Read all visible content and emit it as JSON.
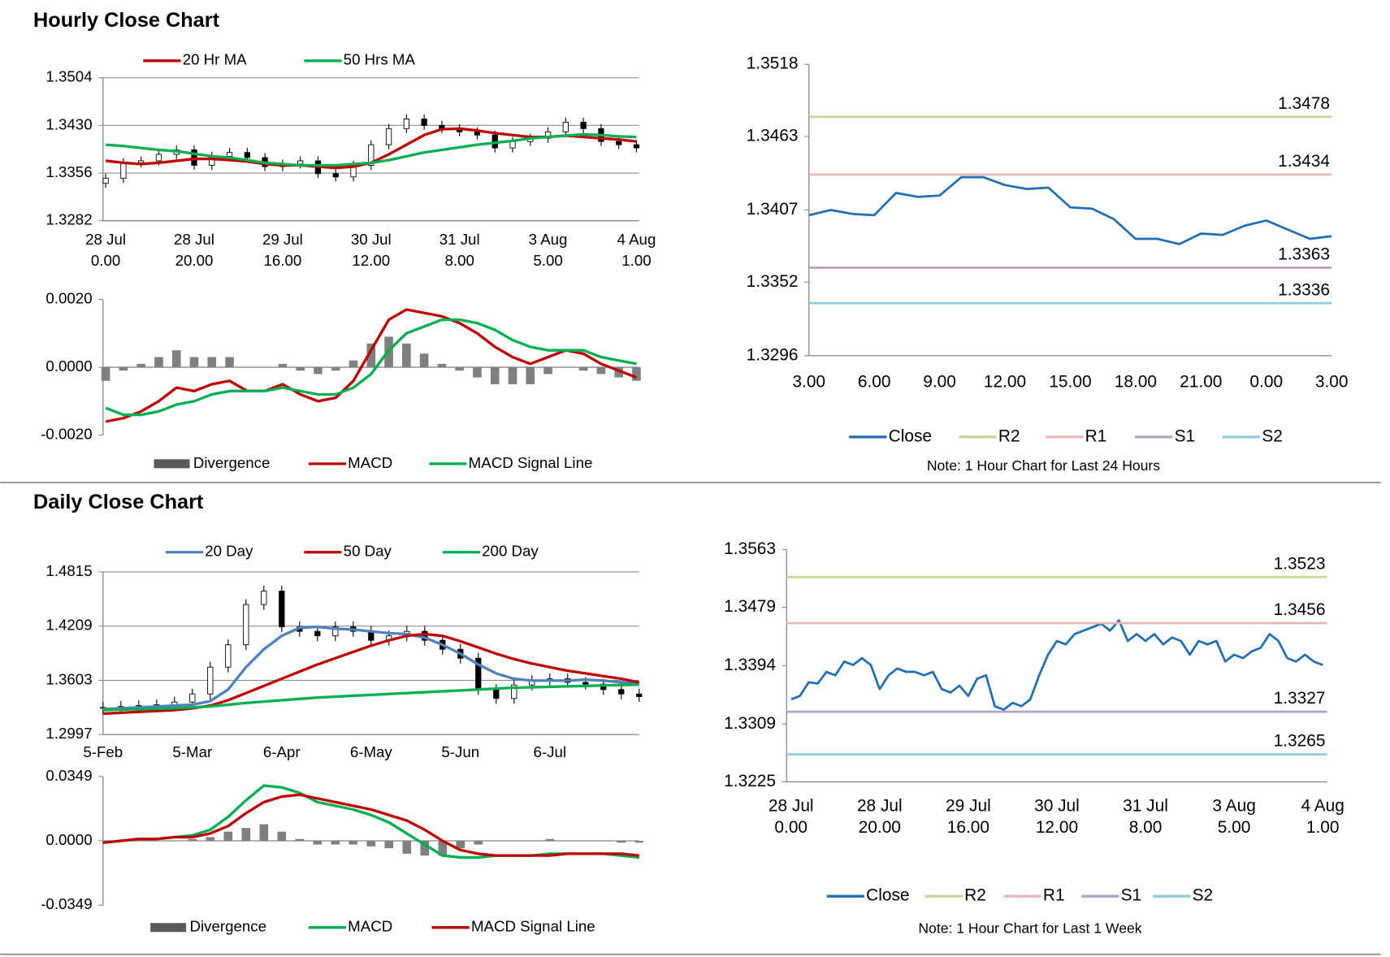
{
  "headings": [
    "Hourly Close Chart",
    "Daily Close Chart"
  ],
  "chart_data": [
    {
      "type": "candlestick",
      "categories": [
        [
          "28 Jul",
          "0.00"
        ],
        null,
        null,
        null,
        null,
        [
          "28 Jul",
          "20.00"
        ],
        null,
        null,
        null,
        null,
        [
          "29 Jul",
          "16.00"
        ],
        null,
        null,
        null,
        null,
        [
          "30 Jul",
          "12.00"
        ],
        null,
        null,
        null,
        null,
        [
          "31 Jul",
          "8.00"
        ],
        null,
        null,
        null,
        null,
        [
          "3 Aug",
          "5.00"
        ],
        null,
        null,
        null,
        null,
        [
          "4 Aug",
          "1.00"
        ]
      ],
      "open": [
        1.334,
        1.3348,
        1.3372,
        1.3375,
        1.3385,
        1.3392,
        1.3368,
        1.3382,
        1.3388,
        1.338,
        1.3366,
        1.337,
        1.3375,
        1.3355,
        1.335,
        1.3368,
        1.34,
        1.3425,
        1.344,
        1.343,
        1.3425,
        1.342,
        1.3415,
        1.3395,
        1.3405,
        1.341,
        1.342,
        1.3435,
        1.3425,
        1.3405,
        1.34
      ],
      "high": [
        1.3355,
        1.3379,
        1.3382,
        1.3392,
        1.3399,
        1.3399,
        1.3389,
        1.3395,
        1.3395,
        1.3387,
        1.3377,
        1.3382,
        1.3382,
        1.3362,
        1.3375,
        1.3407,
        1.3432,
        1.3447,
        1.3447,
        1.3437,
        1.3432,
        1.3427,
        1.3422,
        1.3412,
        1.3417,
        1.3427,
        1.3442,
        1.3442,
        1.3432,
        1.3412,
        1.3407
      ],
      "low": [
        1.3333,
        1.3341,
        1.3365,
        1.3368,
        1.3378,
        1.3361,
        1.3361,
        1.3375,
        1.3373,
        1.3359,
        1.3359,
        1.3363,
        1.3348,
        1.3343,
        1.3343,
        1.3361,
        1.3393,
        1.3418,
        1.3423,
        1.3418,
        1.3413,
        1.3408,
        1.3388,
        1.3388,
        1.3398,
        1.3403,
        1.3413,
        1.3418,
        1.3398,
        1.3393,
        1.3388
      ],
      "close": [
        1.3348,
        1.3372,
        1.3375,
        1.3385,
        1.3392,
        1.3368,
        1.3382,
        1.3388,
        1.338,
        1.3366,
        1.337,
        1.3375,
        1.3355,
        1.335,
        1.3368,
        1.34,
        1.3425,
        1.344,
        1.343,
        1.3425,
        1.342,
        1.3415,
        1.3395,
        1.3405,
        1.341,
        1.342,
        1.3435,
        1.3425,
        1.3405,
        1.34,
        1.3395
      ],
      "series": [
        {
          "name": "20 Hr MA",
          "color": "#c00000",
          "values": [
            1.3375,
            1.3372,
            1.337,
            1.3372,
            1.3375,
            1.3378,
            1.3378,
            1.3376,
            1.3374,
            1.337,
            1.3368,
            1.3368,
            1.3366,
            1.3364,
            1.3366,
            1.3372,
            1.3385,
            1.34,
            1.3415,
            1.3424,
            1.3425,
            1.3422,
            1.3418,
            1.3415,
            1.3412,
            1.3412,
            1.3414,
            1.3412,
            1.341,
            1.3408,
            1.3405
          ]
        },
        {
          "name": "50 Hrs MA",
          "color": "#00b050",
          "values": [
            1.34,
            1.3398,
            1.3395,
            1.3392,
            1.339,
            1.3386,
            1.3382,
            1.338,
            1.3376,
            1.3372,
            1.337,
            1.3368,
            1.3368,
            1.3368,
            1.337,
            1.3372,
            1.3376,
            1.3382,
            1.3388,
            1.3392,
            1.3396,
            1.34,
            1.3403,
            1.3406,
            1.341,
            1.3412,
            1.3414,
            1.3416,
            1.3415,
            1.3413,
            1.3412
          ]
        }
      ],
      "ylim": [
        1.3282,
        1.3504
      ],
      "yticks": [
        1.3282,
        1.3356,
        {
          "value": 1.343,
          "label": "1.3430"
        },
        1.3504
      ],
      "grid": true
    },
    {
      "type": "macd",
      "series": [
        {
          "name": "Divergence",
          "type": "bar",
          "color": "#7f7f7f",
          "values": [
            -0.0004,
            -0.0001,
            0.0001,
            0.0003,
            0.0005,
            0.0003,
            0.0003,
            0.0003,
            0.0,
            0.0,
            0.0001,
            -0.0001,
            -0.0002,
            -0.0001,
            0.0002,
            0.0007,
            0.0009,
            0.0007,
            0.0004,
            0.0001,
            -0.0001,
            -0.0003,
            -0.0005,
            -0.0005,
            -0.0005,
            -0.0002,
            0.0,
            -0.0001,
            -0.0002,
            -0.0003,
            -0.0004
          ]
        },
        {
          "name": "MACD",
          "color": "#c00000",
          "values": [
            -0.0016,
            -0.0015,
            -0.0013,
            -0.001,
            -0.0006,
            -0.0007,
            -0.0005,
            -0.0004,
            -0.0007,
            -0.0007,
            -0.0005,
            -0.0008,
            -0.001,
            -0.0009,
            -0.0004,
            0.0005,
            0.0014,
            0.0017,
            0.0016,
            0.0015,
            0.0013,
            0.001,
            0.0006,
            0.0003,
            0.0001,
            0.0003,
            0.0005,
            0.0004,
            0.0001,
            -0.0001,
            -0.0003
          ]
        },
        {
          "name": "MACD Signal Line",
          "color": "#00b050",
          "values": [
            -0.0012,
            -0.0014,
            -0.0014,
            -0.0013,
            -0.0011,
            -0.001,
            -0.0008,
            -0.0007,
            -0.0007,
            -0.0007,
            -0.0006,
            -0.0007,
            -0.0008,
            -0.0008,
            -0.0006,
            -0.0002,
            0.0005,
            0.001,
            0.0012,
            0.0014,
            0.0014,
            0.0013,
            0.0011,
            0.0008,
            0.0006,
            0.0005,
            0.0005,
            0.0005,
            0.0003,
            0.0002,
            0.0001
          ]
        }
      ],
      "ylim": [
        -0.002,
        0.002
      ],
      "yticks": [
        {
          "value": -0.002,
          "label": "-0.0020"
        },
        {
          "value": 0,
          "label": "0.0000"
        },
        {
          "value": 0.002,
          "label": "0.0020"
        }
      ],
      "grid": false
    },
    {
      "type": "line",
      "categories": [
        "3.00",
        null,
        null,
        "6.00",
        null,
        null,
        "9.00",
        null,
        null,
        "12.00",
        null,
        null,
        "15.00",
        null,
        null,
        "18.00",
        null,
        null,
        "21.00",
        null,
        null,
        "0.00",
        null,
        null,
        "3.00"
      ],
      "series": [
        {
          "name": "Close",
          "color": "#1f6fb2",
          "values": [
            1.3403,
            1.3407,
            1.3404,
            1.3403,
            1.342,
            1.3417,
            1.3418,
            1.3432,
            1.3432,
            1.3426,
            1.3423,
            1.3424,
            1.3409,
            1.3408,
            1.34,
            1.3385,
            1.3385,
            1.3381,
            1.3389,
            1.3388,
            1.3395,
            1.3399,
            1.3392,
            1.3385,
            1.3387
          ]
        },
        {
          "name": "R2",
          "color": "#c4d79b",
          "level": 1.3478
        },
        {
          "name": "R1",
          "color": "#e6b9b8",
          "level": 1.3434
        },
        {
          "name": "S1",
          "color": "#b3a2c7",
          "level": 1.3363
        },
        {
          "name": "S2",
          "color": "#92cddc",
          "level": 1.3336
        }
      ],
      "ylim": [
        1.3296,
        1.3518
      ],
      "yticks": [
        1.3296,
        1.3352,
        1.3407,
        1.3463,
        1.3518
      ],
      "grid": false,
      "note": "Note: 1 Hour Chart for Last 24 Hours"
    },
    {
      "type": "candlestick",
      "categories": [
        "5-Feb",
        null,
        null,
        null,
        null,
        "5-Mar",
        null,
        null,
        null,
        null,
        "6-Apr",
        null,
        null,
        null,
        null,
        "6-May",
        null,
        null,
        null,
        null,
        "5-Jun",
        null,
        null,
        null,
        null,
        "6-Jul",
        null,
        null,
        null,
        null,
        null
      ],
      "open": [
        1.329,
        1.33,
        1.331,
        1.332,
        1.333,
        1.336,
        1.345,
        1.375,
        1.4,
        1.445,
        1.46,
        1.42,
        1.415,
        1.41,
        1.42,
        1.415,
        1.405,
        1.41,
        1.415,
        1.405,
        1.395,
        1.385,
        1.35,
        1.34,
        1.355,
        1.36,
        1.362,
        1.358,
        1.356,
        1.35,
        1.345
      ],
      "high": [
        1.336,
        1.337,
        1.338,
        1.339,
        1.342,
        1.351,
        1.381,
        1.406,
        1.451,
        1.466,
        1.466,
        1.426,
        1.421,
        1.426,
        1.426,
        1.421,
        1.416,
        1.421,
        1.421,
        1.411,
        1.401,
        1.391,
        1.356,
        1.361,
        1.366,
        1.368,
        1.368,
        1.364,
        1.362,
        1.356,
        1.351
      ],
      "low": [
        1.323,
        1.324,
        1.325,
        1.326,
        1.327,
        1.33,
        1.339,
        1.369,
        1.394,
        1.439,
        1.414,
        1.409,
        1.404,
        1.404,
        1.409,
        1.399,
        1.399,
        1.404,
        1.399,
        1.389,
        1.379,
        1.344,
        1.334,
        1.334,
        1.349,
        1.354,
        1.352,
        1.35,
        1.344,
        1.339,
        1.336
      ],
      "close": [
        1.33,
        1.331,
        1.332,
        1.333,
        1.336,
        1.345,
        1.375,
        1.4,
        1.445,
        1.46,
        1.42,
        1.415,
        1.41,
        1.42,
        1.415,
        1.405,
        1.41,
        1.415,
        1.405,
        1.395,
        1.385,
        1.35,
        1.34,
        1.355,
        1.36,
        1.362,
        1.358,
        1.356,
        1.35,
        1.345,
        1.342
      ],
      "series": [
        {
          "name": "20 Day",
          "color": "#4f81bd",
          "values": [
            1.328,
            1.329,
            1.33,
            1.331,
            1.332,
            1.333,
            1.337,
            1.35,
            1.375,
            1.395,
            1.41,
            1.419,
            1.42,
            1.418,
            1.417,
            1.415,
            1.413,
            1.412,
            1.408,
            1.4,
            1.39,
            1.378,
            1.368,
            1.362,
            1.36,
            1.36,
            1.36,
            1.361,
            1.36,
            1.358,
            1.357
          ]
        },
        {
          "name": "50 Day",
          "color": "#c00000",
          "values": [
            1.323,
            1.324,
            1.325,
            1.326,
            1.327,
            1.329,
            1.332,
            1.338,
            1.346,
            1.354,
            1.362,
            1.37,
            1.378,
            1.385,
            1.392,
            1.399,
            1.405,
            1.41,
            1.412,
            1.41,
            1.404,
            1.397,
            1.39,
            1.384,
            1.379,
            1.375,
            1.371,
            1.368,
            1.365,
            1.362,
            1.358
          ]
        },
        {
          "name": "200 Day",
          "color": "#00b050",
          "values": [
            1.327,
            1.3275,
            1.328,
            1.3285,
            1.329,
            1.33,
            1.331,
            1.333,
            1.335,
            1.3365,
            1.338,
            1.3395,
            1.341,
            1.342,
            1.343,
            1.344,
            1.345,
            1.346,
            1.347,
            1.348,
            1.349,
            1.35,
            1.351,
            1.352,
            1.3525,
            1.353,
            1.3535,
            1.354,
            1.3545,
            1.355,
            1.3555
          ]
        }
      ],
      "ylim": [
        1.2997,
        1.4815
      ],
      "yticks": [
        1.2997,
        1.3603,
        1.4209,
        1.4815
      ],
      "grid": true
    },
    {
      "type": "macd",
      "series": [
        {
          "name": "Divergence",
          "type": "bar",
          "color": "#7f7f7f",
          "values": [
            0,
            0,
            0,
            0,
            0,
            0.001,
            0.002,
            0.005,
            0.007,
            0.009,
            0.005,
            0.001,
            -0.002,
            -0.002,
            -0.002,
            -0.003,
            -0.004,
            -0.007,
            -0.008,
            -0.008,
            -0.004,
            -0.002,
            0,
            0,
            0,
            0.001,
            0,
            0,
            0,
            -0.001,
            -0.001
          ]
        },
        {
          "name": "MACD",
          "color": "#00b050",
          "values": [
            -0.001,
            0.0,
            0.001,
            0.001,
            0.002,
            0.003,
            0.006,
            0.013,
            0.022,
            0.03,
            0.029,
            0.026,
            0.021,
            0.019,
            0.017,
            0.014,
            0.01,
            0.004,
            -0.002,
            -0.008,
            -0.009,
            -0.009,
            -0.008,
            -0.008,
            -0.008,
            -0.007,
            -0.007,
            -0.007,
            -0.007,
            -0.008,
            -0.009
          ]
        },
        {
          "name": "MACD Signal Line",
          "color": "#c00000",
          "values": [
            -0.001,
            0.0,
            0.001,
            0.001,
            0.002,
            0.002,
            0.004,
            0.008,
            0.015,
            0.021,
            0.024,
            0.025,
            0.023,
            0.021,
            0.019,
            0.017,
            0.014,
            0.011,
            0.006,
            0.0,
            -0.005,
            -0.007,
            -0.008,
            -0.008,
            -0.008,
            -0.008,
            -0.007,
            -0.007,
            -0.007,
            -0.007,
            -0.008
          ]
        }
      ],
      "ylim": [
        -0.0349,
        0.0349
      ],
      "yticks": [
        -0.0349,
        {
          "value": 0,
          "label": "0.0000"
        },
        0.0349
      ],
      "grid": false
    },
    {
      "type": "line",
      "categories": [
        [
          "28 Jul",
          "0.00"
        ],
        null,
        null,
        null,
        null,
        null,
        null,
        null,
        null,
        null,
        [
          "28 Jul",
          "20.00"
        ],
        null,
        null,
        null,
        null,
        null,
        null,
        null,
        null,
        null,
        [
          "29 Jul",
          "16.00"
        ],
        null,
        null,
        null,
        null,
        null,
        null,
        null,
        null,
        null,
        [
          "30 Jul",
          "12.00"
        ],
        null,
        null,
        null,
        null,
        null,
        null,
        null,
        null,
        null,
        [
          "31 Jul",
          "8.00"
        ],
        null,
        null,
        null,
        null,
        null,
        null,
        null,
        null,
        null,
        [
          "3 Aug",
          "5.00"
        ],
        null,
        null,
        null,
        null,
        null,
        null,
        null,
        null,
        null,
        [
          "4 Aug",
          "1.00"
        ]
      ],
      "series": [
        {
          "name": "Close",
          "color": "#1f6fb2",
          "values": [
            1.3345,
            1.335,
            1.337,
            1.3368,
            1.3385,
            1.338,
            1.34,
            1.3395,
            1.3405,
            1.3395,
            1.336,
            1.338,
            1.339,
            1.3385,
            1.3385,
            1.338,
            1.3385,
            1.336,
            1.3355,
            1.3365,
            1.335,
            1.3375,
            1.338,
            1.3335,
            1.333,
            1.334,
            1.3335,
            1.3345,
            1.338,
            1.341,
            1.343,
            1.3425,
            1.344,
            1.3445,
            1.345,
            1.3455,
            1.3445,
            1.346,
            1.343,
            1.344,
            1.343,
            1.344,
            1.3425,
            1.3435,
            1.343,
            1.341,
            1.343,
            1.3425,
            1.343,
            1.34,
            1.341,
            1.3405,
            1.3415,
            1.342,
            1.344,
            1.343,
            1.3405,
            1.34,
            1.341,
            1.34,
            1.3395
          ]
        },
        {
          "name": "R2",
          "color": "#c4d79b",
          "level": 1.3523
        },
        {
          "name": "R1",
          "color": "#e6b9b8",
          "level": 1.3456
        },
        {
          "name": "S1",
          "color": "#b3a2c7",
          "level": 1.3327
        },
        {
          "name": "S2",
          "color": "#92cddc",
          "level": 1.3265
        }
      ],
      "ylim": [
        1.3225,
        1.3563
      ],
      "yticks": [
        1.3225,
        1.3309,
        1.3394,
        1.3479,
        1.3563
      ],
      "grid": false,
      "note": "Note: 1 Hour Chart for  Last 1 Week"
    }
  ]
}
